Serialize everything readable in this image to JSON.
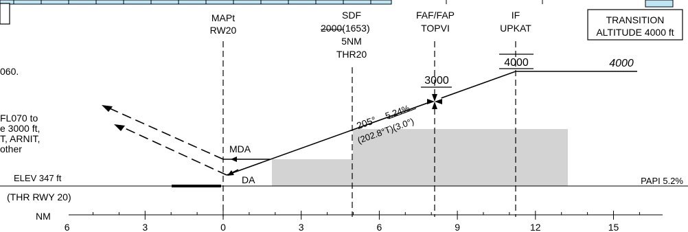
{
  "fixes": {
    "mapt": {
      "line1": "MAPt",
      "line2": "RW20"
    },
    "sdf": {
      "line1": "SDF",
      "alt_underlined": "2000",
      "alt_height": "(1653)",
      "distance": "5NM",
      "thr": "THR20"
    },
    "faf": {
      "line1": "FAF/FAP",
      "line2": "TOPVI"
    },
    "if": {
      "line1": "IF",
      "line2": "UPKAT"
    }
  },
  "transition": {
    "line1": "TRANSITION",
    "line2": "ALTITUDE 4000 ft"
  },
  "altitudes": {
    "faf": "3000",
    "if": "4000",
    "initial": "4000"
  },
  "glide": {
    "track": "205°",
    "gradient": "5.24%",
    "true_track_angle": "(202.8°T)(3.0°)"
  },
  "labels": {
    "mda": "MDA",
    "da": "DA",
    "elev": "ELEV 347 ft",
    "papi": "PAPI 5.2%",
    "threshold": "(THR RWY 20)",
    "nm": "NM"
  },
  "left_notes": {
    "fragment_060": "060.",
    "lines": [
      "FL070 to",
      "e 3000 ft,",
      "T, ARNIT,",
      "other"
    ]
  },
  "scale_ticks": [
    "6",
    "3",
    "0",
    "3",
    "6",
    "9",
    "12",
    "15"
  ],
  "colors": {
    "obstacle_fill": "#d3d3d3",
    "top_strip": "#bfe6f5"
  }
}
